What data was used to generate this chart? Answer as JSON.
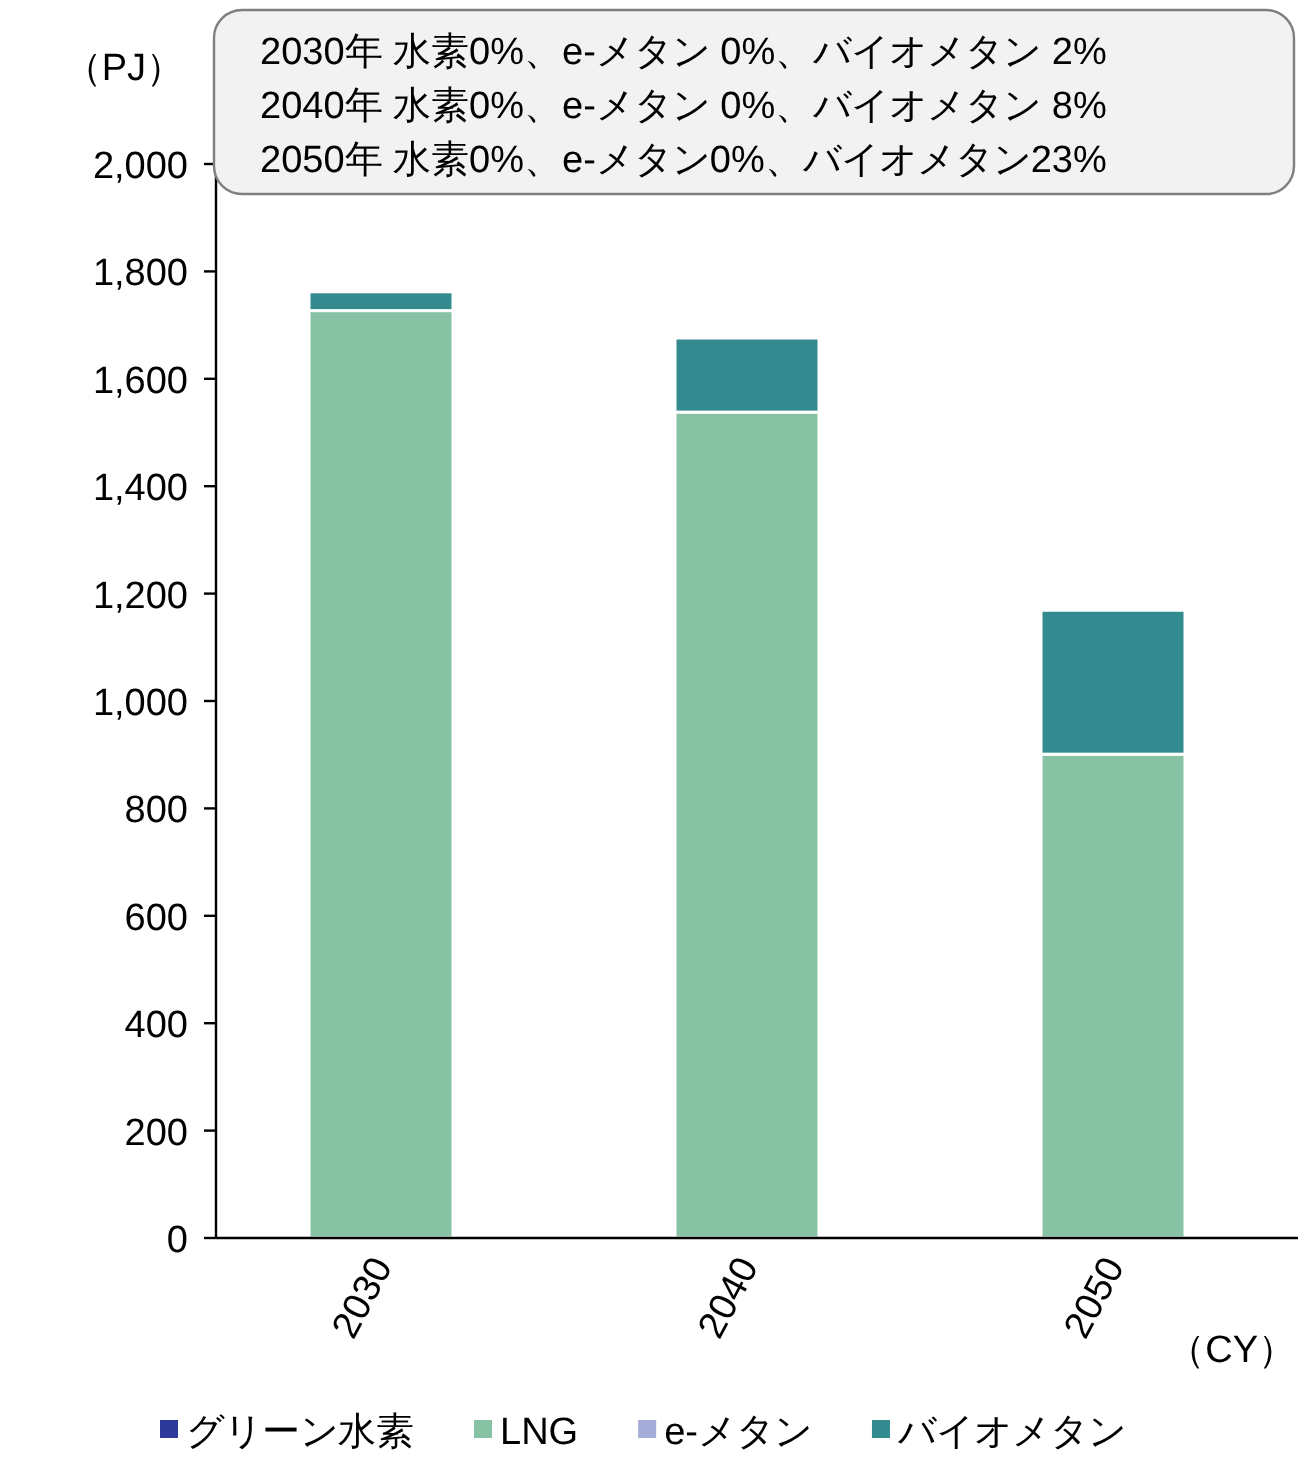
{
  "chart_data": {
    "type": "bar",
    "stacked": true,
    "ylabel": "（PJ）",
    "xlabel": "（CY）",
    "categories": [
      "2030",
      "2040",
      "2050"
    ],
    "series": [
      {
        "name": "グリーン水素",
        "color": "#2e3a9a",
        "values": [
          0,
          0,
          0
        ]
      },
      {
        "name": "LNG",
        "color": "#88c2a4",
        "values": [
          1727,
          1538,
          901
        ]
      },
      {
        "name": "e-メタン",
        "color": "#a6acd8",
        "values": [
          0,
          0,
          0
        ]
      },
      {
        "name": "バイオメタン",
        "color": "#338b8f",
        "values": [
          35,
          138,
          268
        ]
      }
    ],
    "ylim": [
      0,
      2000
    ],
    "yticks": [
      {
        "value": 0,
        "label": "0"
      },
      {
        "value": 200,
        "label": "200"
      },
      {
        "value": 400,
        "label": "400"
      },
      {
        "value": 600,
        "label": "600"
      },
      {
        "value": 800,
        "label": "800"
      },
      {
        "value": 1000,
        "label": "1,000"
      },
      {
        "value": 1200,
        "label": "1,200"
      },
      {
        "value": 1400,
        "label": "1,400"
      },
      {
        "value": 1600,
        "label": "1,600"
      },
      {
        "value": 1800,
        "label": "1,800"
      },
      {
        "value": 2000,
        "label": "2,000"
      }
    ],
    "grid": false,
    "legend": "bottom",
    "annotations": [
      "2030年 水素0%、e-メタン 0%、バイオメタン 2%",
      "2040年 水素0%、e-メタン 0%、バイオメタン 8%",
      "2050年 水素0%、e-メタン0%、バイオメタン23%"
    ]
  }
}
